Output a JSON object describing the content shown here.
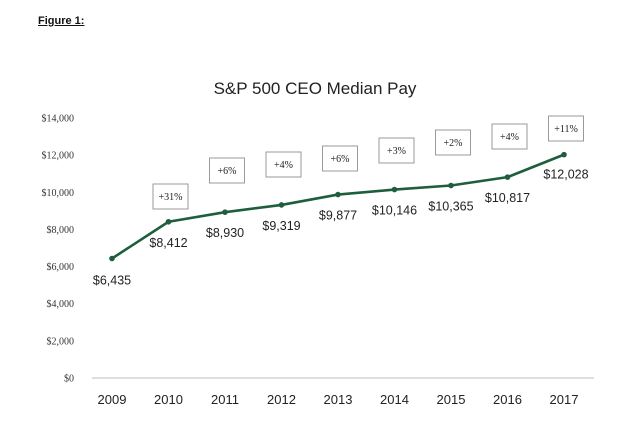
{
  "caption": "Figure 1:",
  "chart_data": {
    "type": "line",
    "title": "S&P 500 CEO Median Pay",
    "xlabel": "",
    "ylabel": "",
    "x": [
      "2009",
      "2010",
      "2011",
      "2012",
      "2013",
      "2014",
      "2015",
      "2016",
      "2017"
    ],
    "values": [
      6435,
      8412,
      8930,
      9319,
      9877,
      10146,
      10365,
      10817,
      12028
    ],
    "value_labels": [
      "$6,435",
      "$8,412",
      "$8,930",
      "$9,319",
      "$9,877",
      "$10,146",
      "$10,365",
      "$10,817",
      "$12,028"
    ],
    "growth_labels": [
      "+31%",
      "+6%",
      "+4%",
      "+6%",
      "+3%",
      "+2%",
      "+4%",
      "+11%"
    ],
    "yticks": [
      0,
      2000,
      4000,
      6000,
      8000,
      10000,
      12000,
      14000
    ],
    "ytick_labels": [
      "$0",
      "$2,000",
      "$4,000",
      "$6,000",
      "$8,000",
      "$10,000",
      "$12,000",
      "$14,000"
    ],
    "ylim": [
      0,
      14000
    ],
    "grid": false,
    "line_color": "#1e5e3c"
  }
}
